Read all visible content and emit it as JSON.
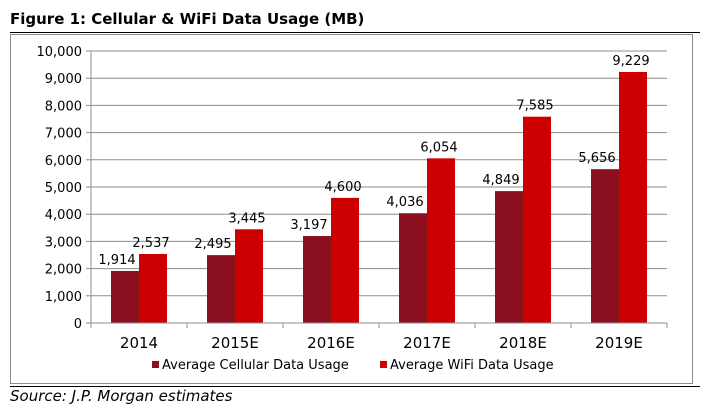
{
  "figure": {
    "title": "Figure 1: Cellular & WiFi Data Usage (MB)",
    "source": "Source: J.P. Morgan estimates"
  },
  "chart_data": {
    "type": "bar",
    "categories": [
      "2014",
      "2015E",
      "2016E",
      "2017E",
      "2018E",
      "2019E"
    ],
    "series": [
      {
        "name": "Average Cellular Data Usage",
        "color": "#8b1020",
        "values": [
          1914,
          2495,
          3197,
          4036,
          4849,
          5656
        ],
        "labels": [
          "1,914",
          "2,495",
          "3,197",
          "4,036",
          "4,849",
          "5,656"
        ]
      },
      {
        "name": "Average WiFi Data Usage",
        "color": "#cc0000",
        "values": [
          2537,
          3445,
          4600,
          6054,
          7585,
          9229
        ],
        "labels": [
          "2,537",
          "3,445",
          "4,600",
          "6,054",
          "7,585",
          "9,229"
        ]
      }
    ],
    "ylim": [
      0,
      10000
    ],
    "yticks": [
      0,
      1000,
      2000,
      3000,
      4000,
      5000,
      6000,
      7000,
      8000,
      9000,
      10000
    ],
    "ytick_labels": [
      "0",
      "1,000",
      "2,000",
      "3,000",
      "4,000",
      "5,000",
      "6,000",
      "7,000",
      "8,000",
      "9,000",
      "10,000"
    ],
    "grid": true,
    "legend": "bottom",
    "title": "",
    "xlabel": "",
    "ylabel": ""
  }
}
